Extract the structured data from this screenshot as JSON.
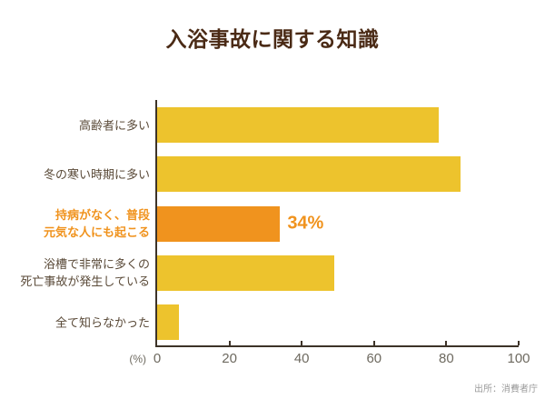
{
  "source_caption": "出所：消費者庁",
  "colors": {
    "bar": "#EDC32D",
    "highlight": "#F0931E",
    "title": "#4A2A15",
    "label": "#5A4A38",
    "axis": "#3D3328",
    "tick_label": "#6E6A60",
    "source": "#9B9B9B",
    "background": "#FFFFFF"
  },
  "chart_data": {
    "type": "bar",
    "orientation": "horizontal",
    "title": "入浴事故に関する知識",
    "categories": [
      "高齢者に多い",
      "冬の寒い時期に多い",
      "持病がなく、普段\n元気な人にも起こる",
      "浴槽で非常に多くの\n死亡事故が発生している",
      "全て知らなかった"
    ],
    "values": [
      78,
      84,
      34,
      49,
      6
    ],
    "highlight_index": 2,
    "value_labels": [
      "",
      "",
      "34%",
      "",
      ""
    ],
    "xlabel": "(%)",
    "xticks": [
      0,
      20,
      40,
      60,
      80,
      100
    ],
    "xlim": [
      0,
      100
    ],
    "grid": false,
    "legend": false
  }
}
